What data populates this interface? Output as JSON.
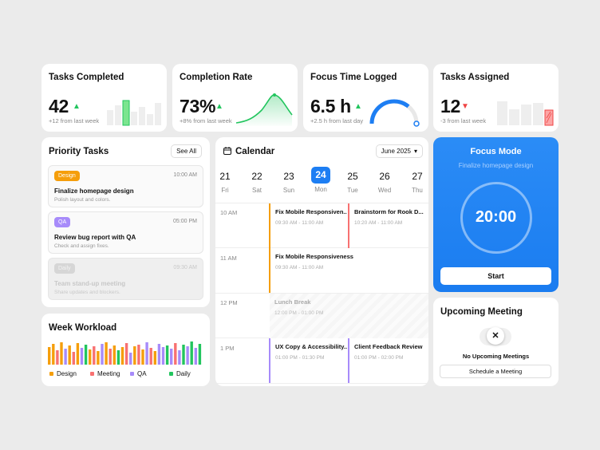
{
  "stats": {
    "tasks_completed": {
      "title": "Tasks Completed",
      "value": "42",
      "trend": "up",
      "sub": "+12 from last week"
    },
    "completion_rate": {
      "title": "Completion Rate",
      "value": "73%",
      "trend": "up",
      "sub": "+8% from last week"
    },
    "focus_time": {
      "title": "Focus Time Logged",
      "value": "6.5 h",
      "trend": "up",
      "sub": "+2.5 h from last day",
      "gauge_fraction": 0.72
    },
    "tasks_assigned": {
      "title": "Tasks Assigned",
      "value": "12",
      "trend": "down",
      "sub": "-3 from last week"
    }
  },
  "icons": {
    "arrow_up": "▲",
    "arrow_down": "▼",
    "calendar": "calendar-icon",
    "chevron": "▾",
    "close": "✕"
  },
  "priority": {
    "title": "Priority Tasks",
    "see_all": "See All",
    "tasks": [
      {
        "tag": "Design",
        "tag_color": "#f59e0b",
        "time": "10:00 AM",
        "title": "Finalize homepage design",
        "desc": "Polish layout and colors."
      },
      {
        "tag": "QA",
        "tag_color": "#a78bfa",
        "time": "05:00 PM",
        "title": "Review bug report with QA",
        "desc": "Check and assign fixes."
      },
      {
        "tag": "Daily",
        "tag_color": "#d6d6d6",
        "time": "09:30 AM",
        "title": "Team stand-up meeting",
        "desc": "Share updates and blockers."
      }
    ]
  },
  "workload": {
    "title": "Week Workload",
    "legend": [
      {
        "label": "Design",
        "color": "#f59e0b"
      },
      {
        "label": "Meeting",
        "color": "#f87171"
      },
      {
        "label": "QA",
        "color": "#a78bfa"
      },
      {
        "label": "Daily",
        "color": "#22c55e"
      }
    ]
  },
  "calendar": {
    "title": "Calendar",
    "month": "June 2025",
    "days": [
      {
        "num": "21",
        "wd": "Fri"
      },
      {
        "num": "22",
        "wd": "Sat"
      },
      {
        "num": "23",
        "wd": "Sun"
      },
      {
        "num": "24",
        "wd": "Mon"
      },
      {
        "num": "25",
        "wd": "Tue"
      },
      {
        "num": "26",
        "wd": "Wed"
      },
      {
        "num": "27",
        "wd": "Thu"
      }
    ],
    "hours": [
      "10 AM",
      "11 AM",
      "12 PM",
      "1 PM"
    ],
    "events": [
      {
        "title": "Fix Mobile Responsiven...",
        "time": "09:30 AM - 11:00 AM",
        "color": "#f59e0b"
      },
      {
        "title": "Brainstorm for Rook D...",
        "time": "10:20 AM - 11:00 AM",
        "color": "#f87171"
      },
      {
        "title": "Fix Mobile Responsiveness",
        "time": "09:30 AM - 11:00 AM",
        "color": "#f59e0b"
      },
      {
        "title": "UX Copy & Accessibility...",
        "time": "01:00 PM - 01:30 PM",
        "color": "#a78bfa"
      },
      {
        "title": "Client Feedback Review",
        "time": "01:00 PM - 02:00 PM",
        "color": "#a78bfa"
      }
    ],
    "lunch": {
      "title": "Lunch Break",
      "time": "12:00 PM - 01:00 PM"
    }
  },
  "focus": {
    "title": "Focus Mode",
    "subtitle": "Finalize homepage design",
    "timer": "20:00",
    "start": "Start"
  },
  "meeting": {
    "title": "Upcoming Meeting",
    "empty": "No Upcoming Meetings",
    "schedule": "Schedule a Meeting"
  }
}
